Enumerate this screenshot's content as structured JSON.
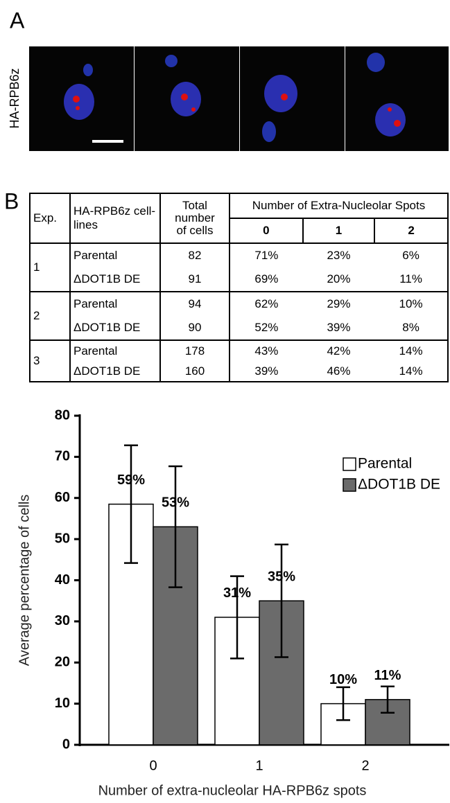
{
  "panel_a": {
    "label": "A",
    "image_label": "HA-RPB6z"
  },
  "panel_b": {
    "label": "B"
  },
  "table": {
    "headers": {
      "exp": "Exp.",
      "lines": "HA-RPB6z cell-lines",
      "total": "Total number of cells",
      "spots": "Number of Extra-Nucleolar Spots",
      "spot_counts": [
        "0",
        "1",
        "2"
      ]
    },
    "groups": [
      {
        "exp": "1",
        "rows": [
          [
            "Parental",
            "82",
            "71%",
            "23%",
            "6%"
          ],
          [
            "ΔDOT1B DE",
            "91",
            "69%",
            "20%",
            "11%"
          ]
        ]
      },
      {
        "exp": "2",
        "rows": [
          [
            "Parental",
            "94",
            "62%",
            "29%",
            "10%"
          ],
          [
            "ΔDOT1B DE",
            "90",
            "52%",
            "39%",
            "8%"
          ]
        ]
      },
      {
        "exp": "3",
        "rows": [
          [
            "Parental",
            "178",
            "43%",
            "42%",
            "14%"
          ],
          [
            "ΔDOT1B DE",
            "160",
            "39%",
            "46%",
            "14%"
          ]
        ]
      }
    ]
  },
  "chart_data": {
    "type": "bar",
    "x_label": "Number of extra-nucleolar HA-RPB6z spots",
    "y_label": "Average percentage of cells",
    "categories": [
      "0",
      "1",
      "2"
    ],
    "series": [
      {
        "name": "Parental",
        "color": "#ffffff",
        "values": [
          58.5,
          31,
          10
        ],
        "value_labels": [
          "59%",
          "31%",
          "10%"
        ],
        "errors": [
          14.3,
          10,
          4
        ]
      },
      {
        "name": "ΔDOT1B DE",
        "color": "#6b6b6b",
        "values": [
          53,
          35,
          11
        ],
        "value_labels": [
          "53%",
          "35%",
          "11%"
        ],
        "errors": [
          14.7,
          13.7,
          3.2
        ]
      }
    ],
    "ylim": [
      0,
      80
    ],
    "yticks": [
      0,
      10,
      20,
      30,
      40,
      50,
      60,
      70,
      80
    ],
    "legend": "upper right"
  }
}
